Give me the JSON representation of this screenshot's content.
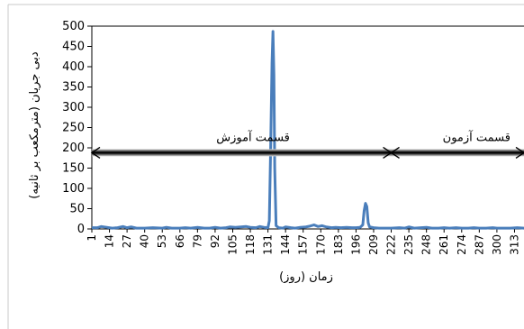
{
  "chart_data": {
    "type": "line",
    "ylabel": "دبی جریان (مترمکعب بر ثانیه)",
    "xlabel": "زمان (روز)",
    "ylim": [
      0,
      500
    ],
    "yticks": [
      0,
      50,
      100,
      150,
      200,
      250,
      300,
      350,
      400,
      450,
      500
    ],
    "xlim": [
      1,
      320
    ],
    "xtick_labels": [
      "1",
      "14",
      "27",
      "40",
      "53",
      "66",
      "79",
      "92",
      "105",
      "118",
      "131",
      "144",
      "157",
      "170",
      "183",
      "196",
      "209",
      "222",
      "235",
      "248",
      "261",
      "274",
      "287",
      "300",
      "313"
    ],
    "grid": false,
    "series": [
      {
        "color": "#4a7ebb",
        "points": [
          [
            1,
            3
          ],
          [
            5,
            3
          ],
          [
            8,
            6
          ],
          [
            12,
            4
          ],
          [
            16,
            2
          ],
          [
            20,
            3
          ],
          [
            24,
            6
          ],
          [
            27,
            3
          ],
          [
            30,
            5
          ],
          [
            34,
            2
          ],
          [
            40,
            2
          ],
          [
            46,
            3
          ],
          [
            53,
            2
          ],
          [
            56,
            4
          ],
          [
            60,
            2
          ],
          [
            66,
            2
          ],
          [
            70,
            3
          ],
          [
            74,
            2
          ],
          [
            79,
            4
          ],
          [
            84,
            2
          ],
          [
            88,
            2
          ],
          [
            92,
            4
          ],
          [
            96,
            2
          ],
          [
            100,
            3
          ],
          [
            103,
            5
          ],
          [
            107,
            4
          ],
          [
            111,
            5
          ],
          [
            115,
            6
          ],
          [
            118,
            4
          ],
          [
            122,
            3
          ],
          [
            125,
            6
          ],
          [
            128,
            4
          ],
          [
            131,
            3
          ],
          [
            132,
            20
          ],
          [
            133,
            200
          ],
          [
            134,
            410
          ],
          [
            134.7,
            487
          ],
          [
            135.4,
            380
          ],
          [
            136,
            150
          ],
          [
            137,
            8
          ],
          [
            139,
            3
          ],
          [
            142,
            2
          ],
          [
            144,
            5
          ],
          [
            148,
            3
          ],
          [
            151,
            2
          ],
          [
            155,
            4
          ],
          [
            159,
            5
          ],
          [
            162,
            7
          ],
          [
            165,
            10
          ],
          [
            168,
            6
          ],
          [
            171,
            8
          ],
          [
            174,
            5
          ],
          [
            178,
            3
          ],
          [
            181,
            4
          ],
          [
            185,
            3
          ],
          [
            189,
            4
          ],
          [
            193,
            3
          ],
          [
            196,
            3
          ],
          [
            199,
            4
          ],
          [
            201,
            10
          ],
          [
            202,
            45
          ],
          [
            203,
            63
          ],
          [
            204,
            55
          ],
          [
            205,
            15
          ],
          [
            206,
            5
          ],
          [
            209,
            3
          ],
          [
            213,
            2
          ],
          [
            217,
            2
          ],
          [
            222,
            2
          ],
          [
            228,
            3
          ],
          [
            232,
            2
          ],
          [
            235,
            5
          ],
          [
            239,
            2
          ],
          [
            244,
            3
          ],
          [
            248,
            4
          ],
          [
            252,
            2
          ],
          [
            257,
            2
          ],
          [
            261,
            3
          ],
          [
            265,
            2
          ],
          [
            270,
            3
          ],
          [
            274,
            2
          ],
          [
            279,
            2
          ],
          [
            283,
            3
          ],
          [
            287,
            2
          ],
          [
            292,
            2
          ],
          [
            297,
            3
          ],
          [
            300,
            2
          ],
          [
            305,
            2
          ],
          [
            310,
            2
          ],
          [
            315,
            3
          ],
          [
            320,
            2
          ]
        ]
      }
    ],
    "annotations": {
      "band_y": 188,
      "train_label": "قسمت آموزش",
      "test_label": "قسمت آزمون",
      "train_range": [
        1,
        222
      ],
      "test_range": [
        222,
        320
      ],
      "train_label_x": 120,
      "test_label_x": 285
    }
  }
}
